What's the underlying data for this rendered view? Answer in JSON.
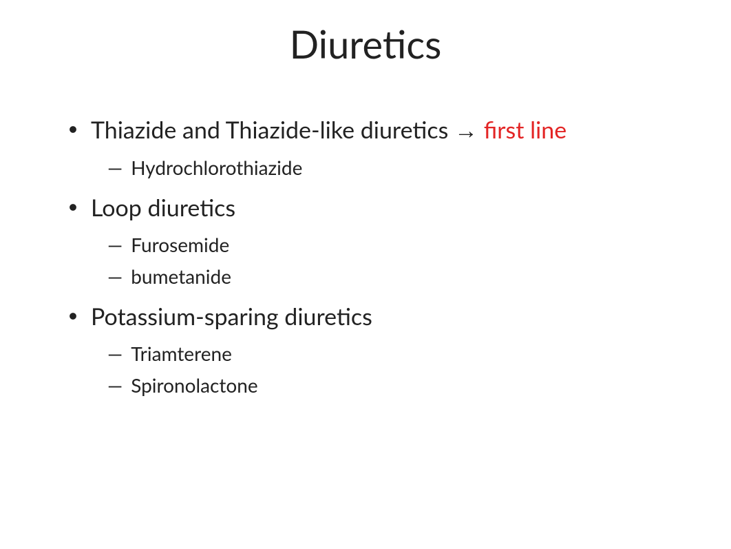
{
  "title": "Diuretics",
  "colors": {
    "background": "#ffffff",
    "text": "#222222",
    "highlight": "#e32525"
  },
  "typography": {
    "title_fontsize": 56,
    "bullet_fontsize": 34,
    "sub_fontsize": 28,
    "font_family": "Segoe UI"
  },
  "bullets": [
    {
      "text": "Thiazide and Thiazide-like diuretics ",
      "arrow": "→",
      "highlight": " first line",
      "sub": [
        "Hydrochlorothiazide"
      ]
    },
    {
      "text": "Loop diuretics",
      "sub": [
        "Furosemide",
        "bumetanide"
      ]
    },
    {
      "text": "Potassium-sparing diuretics",
      "sub": [
        "Triamterene",
        "Spironolactone"
      ]
    }
  ]
}
